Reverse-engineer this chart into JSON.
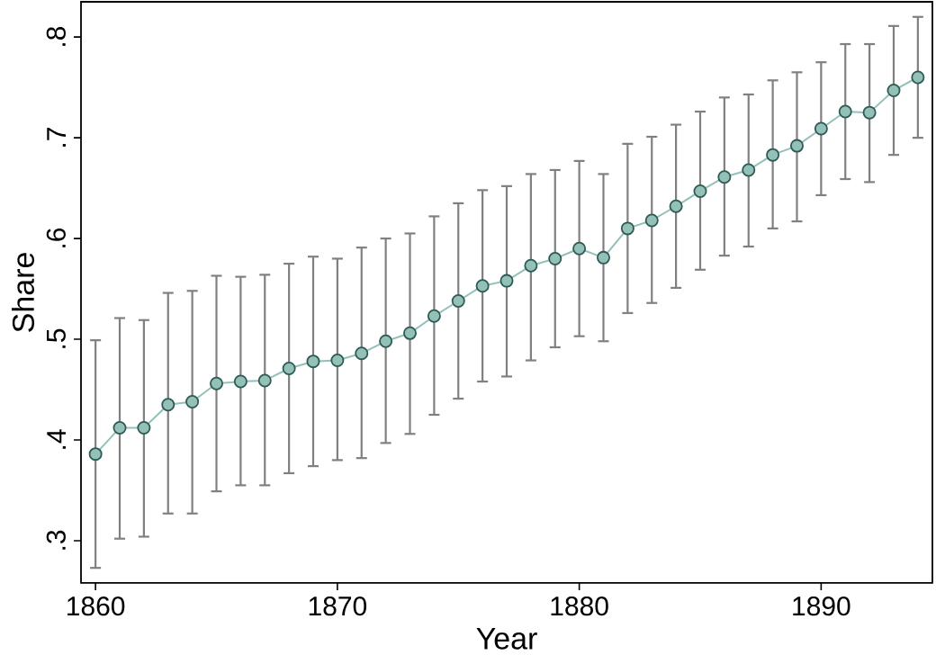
{
  "chart_data": {
    "type": "line",
    "xlabel": "Year",
    "ylabel": "Share",
    "x": [
      1860,
      1861,
      1862,
      1863,
      1864,
      1865,
      1866,
      1867,
      1868,
      1869,
      1870,
      1871,
      1872,
      1873,
      1874,
      1875,
      1876,
      1877,
      1878,
      1879,
      1880,
      1881,
      1882,
      1883,
      1884,
      1885,
      1886,
      1887,
      1888,
      1889,
      1890,
      1891,
      1892,
      1893,
      1894
    ],
    "series": [
      {
        "color": "#93c1b8",
        "values": [
          0.386,
          0.412,
          0.412,
          0.435,
          0.438,
          0.456,
          0.458,
          0.459,
          0.471,
          0.478,
          0.479,
          0.486,
          0.498,
          0.506,
          0.523,
          0.538,
          0.553,
          0.558,
          0.573,
          0.58,
          0.59,
          0.581,
          0.61,
          0.618,
          0.632,
          0.647,
          0.661,
          0.668,
          0.683,
          0.692,
          0.709,
          0.726,
          0.725,
          0.747,
          0.76
        ],
        "errors": [
          [
            0.273,
            0.499
          ],
          [
            0.302,
            0.521
          ],
          [
            0.304,
            0.519
          ],
          [
            0.327,
            0.546
          ],
          [
            0.327,
            0.548
          ],
          [
            0.349,
            0.563
          ],
          [
            0.355,
            0.562
          ],
          [
            0.355,
            0.564
          ],
          [
            0.367,
            0.575
          ],
          [
            0.374,
            0.582
          ],
          [
            0.38,
            0.58
          ],
          [
            0.382,
            0.591
          ],
          [
            0.397,
            0.6
          ],
          [
            0.406,
            0.605
          ],
          [
            0.425,
            0.622
          ],
          [
            0.441,
            0.635
          ],
          [
            0.458,
            0.648
          ],
          [
            0.463,
            0.652
          ],
          [
            0.479,
            0.664
          ],
          [
            0.492,
            0.668
          ],
          [
            0.503,
            0.677
          ],
          [
            0.498,
            0.664
          ],
          [
            0.526,
            0.694
          ],
          [
            0.536,
            0.701
          ],
          [
            0.551,
            0.713
          ],
          [
            0.569,
            0.726
          ],
          [
            0.583,
            0.74
          ],
          [
            0.592,
            0.743
          ],
          [
            0.61,
            0.757
          ],
          [
            0.617,
            0.765
          ],
          [
            0.643,
            0.775
          ],
          [
            0.659,
            0.793
          ],
          [
            0.656,
            0.793
          ],
          [
            0.683,
            0.811
          ],
          [
            0.7,
            0.82
          ]
        ]
      }
    ],
    "marker": "circle",
    "line_style": "solid",
    "xlim": [
      1859.4,
      1894.6
    ],
    "ylim": [
      0.258,
      0.835
    ],
    "xticks": [
      1860,
      1870,
      1880,
      1890
    ],
    "yticks": [
      {
        "value": 0.3,
        "label": ".3"
      },
      {
        "value": 0.4,
        "label": ".4"
      },
      {
        "value": 0.5,
        "label": ".5"
      },
      {
        "value": 0.6,
        "label": ".6"
      },
      {
        "value": 0.7,
        "label": ".7"
      },
      {
        "value": 0.8,
        "label": ".8"
      }
    ]
  }
}
